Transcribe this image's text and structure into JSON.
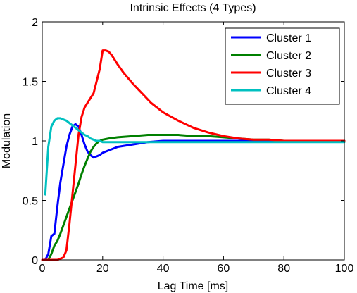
{
  "chart_data": {
    "type": "line",
    "title": "Intrinsic Effects (4 Types)",
    "xlabel": "Lag Time [ms]",
    "ylabel": "Modulation",
    "xlim": [
      0,
      100
    ],
    "ylim": [
      0,
      2
    ],
    "xticks": [
      0,
      20,
      40,
      60,
      80,
      100
    ],
    "yticks": [
      0,
      0.5,
      1,
      1.5,
      2
    ],
    "xtick_labels": [
      "0",
      "20",
      "40",
      "60",
      "80",
      "100"
    ],
    "ytick_labels": [
      "0",
      "0.5",
      "1",
      "1.5",
      "2"
    ],
    "grid": false,
    "legend_position": "top-right",
    "series": [
      {
        "name": "Cluster 1",
        "color": "#0000ff",
        "x": [
          1,
          2,
          3,
          4,
          5,
          6,
          7,
          8,
          9,
          10,
          11,
          12,
          13,
          14,
          15,
          16,
          17,
          18,
          19,
          20,
          22,
          25,
          30,
          35,
          40,
          45,
          50,
          55,
          60,
          70,
          80,
          90,
          100
        ],
        "y": [
          0.0,
          0.05,
          0.2,
          0.22,
          0.45,
          0.65,
          0.8,
          0.95,
          1.05,
          1.12,
          1.14,
          1.12,
          1.05,
          0.97,
          0.91,
          0.88,
          0.86,
          0.87,
          0.88,
          0.9,
          0.92,
          0.95,
          0.97,
          0.99,
          1.0,
          1.0,
          1.0,
          1.0,
          1.0,
          1.0,
          1.0,
          1.0,
          1.0
        ]
      },
      {
        "name": "Cluster 2",
        "color": "#008000",
        "x": [
          2,
          3,
          4,
          5,
          6,
          7,
          8,
          9,
          10,
          11,
          12,
          13,
          14,
          15,
          16,
          17,
          18,
          19,
          20,
          22,
          25,
          30,
          35,
          40,
          45,
          50,
          55,
          60,
          65,
          70,
          75,
          80,
          90,
          100
        ],
        "y": [
          0.0,
          0.05,
          0.12,
          0.16,
          0.22,
          0.29,
          0.36,
          0.43,
          0.5,
          0.57,
          0.64,
          0.72,
          0.79,
          0.85,
          0.91,
          0.95,
          0.98,
          1.0,
          1.01,
          1.02,
          1.03,
          1.04,
          1.05,
          1.05,
          1.05,
          1.04,
          1.04,
          1.03,
          1.02,
          1.01,
          1.01,
          1.0,
          1.0,
          1.0
        ]
      },
      {
        "name": "Cluster 3",
        "color": "#ff0000",
        "x": [
          0,
          5,
          7,
          8,
          9,
          10,
          11,
          12,
          13,
          14,
          15,
          16,
          17,
          18,
          19,
          20,
          21,
          22,
          23,
          25,
          27,
          30,
          33,
          36,
          40,
          45,
          50,
          55,
          60,
          65,
          70,
          75,
          80,
          90,
          100
        ],
        "y": [
          0.0,
          0.0,
          0.02,
          0.08,
          0.3,
          0.55,
          0.8,
          1.05,
          1.2,
          1.28,
          1.32,
          1.36,
          1.4,
          1.5,
          1.6,
          1.76,
          1.76,
          1.75,
          1.72,
          1.64,
          1.57,
          1.48,
          1.4,
          1.32,
          1.24,
          1.17,
          1.11,
          1.07,
          1.04,
          1.02,
          1.01,
          1.01,
          1.0,
          1.0,
          1.0
        ]
      },
      {
        "name": "Cluster 4",
        "color": "#00c0c0",
        "x": [
          1,
          2,
          3,
          4,
          5,
          6,
          7,
          8,
          9,
          10,
          11,
          12,
          13,
          14,
          15,
          16,
          17,
          18,
          19,
          20,
          22,
          25,
          30,
          40,
          50,
          60,
          70,
          80,
          90,
          100
        ],
        "y": [
          0.55,
          0.95,
          1.12,
          1.17,
          1.19,
          1.19,
          1.18,
          1.17,
          1.15,
          1.13,
          1.11,
          1.09,
          1.07,
          1.05,
          1.04,
          1.02,
          1.01,
          1.0,
          1.0,
          0.99,
          0.99,
          0.99,
          0.99,
          0.99,
          0.99,
          0.99,
          0.99,
          0.99,
          0.99,
          0.99
        ]
      }
    ]
  }
}
